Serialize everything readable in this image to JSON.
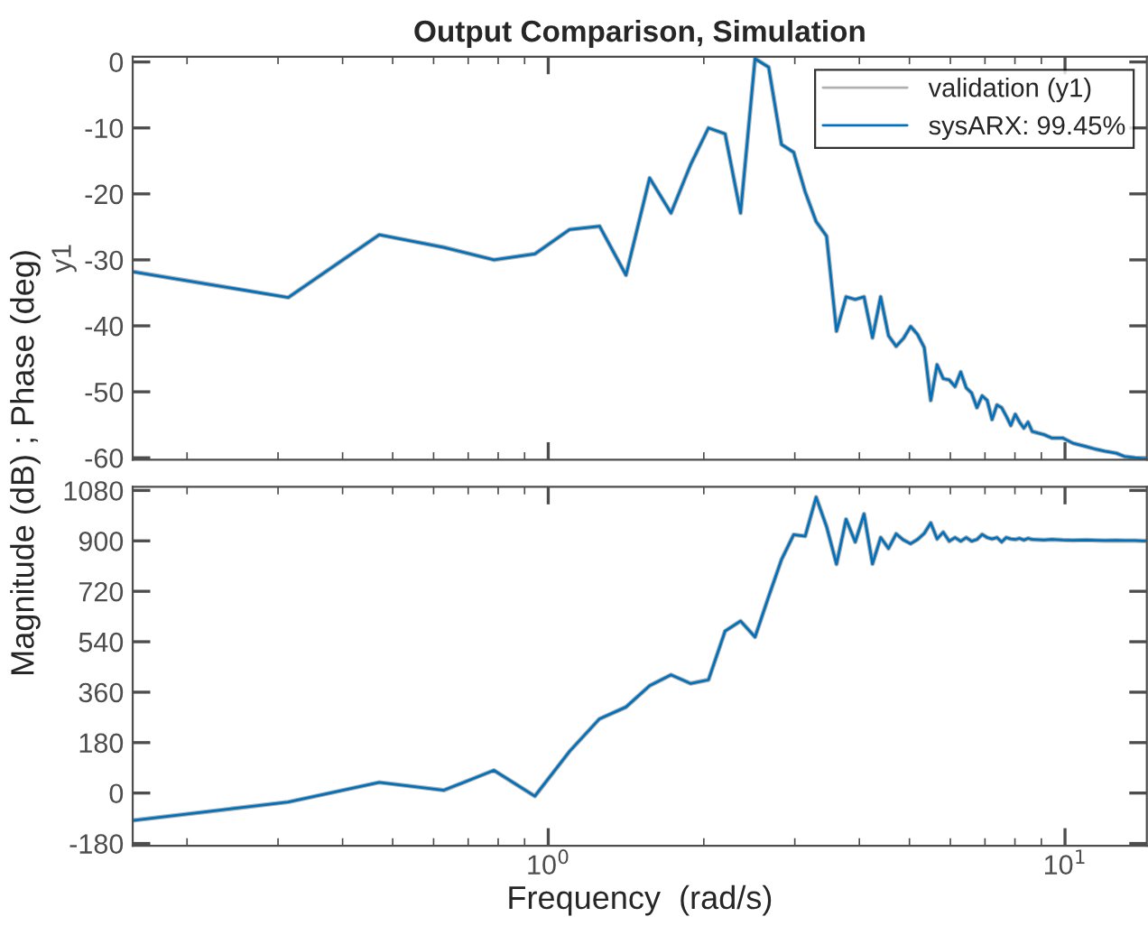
{
  "chart_data": [
    {
      "type": "line",
      "title": "Output Comparison, Simulation",
      "ylabel": "y1",
      "annotations": [
        "Magnitude (dB) ; Phase (deg)"
      ],
      "log": "x",
      "grid": false,
      "legend": "top right",
      "tick_labels": "y",
      "x": [
        0.157,
        0.314,
        0.471,
        0.628,
        0.785,
        0.942,
        1.1,
        1.257,
        1.414,
        1.571,
        1.728,
        1.885,
        2.042,
        2.199,
        2.356,
        2.513,
        2.67,
        2.827,
        2.985,
        3.142,
        3.299,
        3.456,
        3.613,
        3.77,
        3.927,
        4.084,
        4.241,
        4.398,
        4.555,
        4.712,
        4.869,
        5.027,
        5.184,
        5.341,
        5.498,
        5.655,
        5.812,
        5.969,
        6.126,
        6.283,
        6.44,
        6.597,
        6.754,
        6.912,
        7.069,
        7.226,
        7.383,
        7.54,
        7.697,
        7.854,
        8.011,
        8.168,
        8.325,
        8.482,
        8.639,
        9.111,
        9.425,
        9.896,
        10.367,
        10.996,
        11.467,
        11.938,
        12.566,
        13.038,
        13.666,
        14.137,
        14.294
      ],
      "xlim": [
        0.157,
        14.4
      ],
      "ylim": [
        -60.3,
        0.8
      ],
      "yticks": [
        0,
        -10,
        -20,
        -30,
        -40,
        -50,
        -60
      ],
      "series": [
        {
          "name": "validation (y1)",
          "color": "#b0b0b0",
          "values": [
            -31.8,
            -35.7,
            -26.2,
            -28.1,
            -30.0,
            -29.1,
            -25.4,
            -24.9,
            -32.3,
            -17.6,
            -22.9,
            -15.6,
            -10.0,
            -10.9,
            -22.9,
            0.5,
            -0.8,
            -12.5,
            -13.7,
            -19.7,
            -24.2,
            -26.4,
            -40.8,
            -35.6,
            -36.0,
            -35.6,
            -41.8,
            -35.6,
            -41.5,
            -43.1,
            -41.9,
            -40.1,
            -41.3,
            -43.3,
            -51.3,
            -45.9,
            -48.0,
            -48.2,
            -49.2,
            -47.0,
            -49.4,
            -50.2,
            -52.4,
            -50.6,
            -51.3,
            -54.2,
            -52.0,
            -52.4,
            -53.7,
            -55.1,
            -53.4,
            -54.6,
            -55.5,
            -54.6,
            -56.0,
            -56.5,
            -57.0,
            -57.0,
            -57.8,
            -58.3,
            -58.7,
            -59.0,
            -59.3,
            -59.8,
            -60.0,
            -60.1,
            -60.1
          ]
        },
        {
          "name": "sysARX: 99.45%",
          "color": "#0072bd",
          "values": [
            -31.8,
            -35.7,
            -26.2,
            -28.1,
            -30.0,
            -29.1,
            -25.4,
            -24.9,
            -32.3,
            -17.6,
            -22.9,
            -15.6,
            -10.0,
            -10.9,
            -22.9,
            0.5,
            -0.8,
            -12.5,
            -13.7,
            -19.7,
            -24.2,
            -26.4,
            -40.8,
            -35.6,
            -36.0,
            -35.6,
            -41.8,
            -35.6,
            -41.5,
            -43.1,
            -41.9,
            -40.1,
            -41.3,
            -43.3,
            -51.3,
            -45.9,
            -48.0,
            -48.2,
            -49.2,
            -47.0,
            -49.4,
            -50.2,
            -52.4,
            -50.6,
            -51.3,
            -54.2,
            -52.0,
            -52.4,
            -53.7,
            -55.1,
            -53.4,
            -54.6,
            -55.5,
            -54.6,
            -56.0,
            -56.5,
            -57.0,
            -57.0,
            -57.8,
            -58.3,
            -58.7,
            -59.0,
            -59.3,
            -59.8,
            -60.0,
            -60.1,
            -60.1
          ]
        }
      ]
    },
    {
      "type": "line",
      "xlabel": "Frequency  (rad/s)",
      "log": "x",
      "grid": false,
      "x": [
        0.157,
        0.314,
        0.471,
        0.628,
        0.785,
        0.942,
        1.1,
        1.257,
        1.414,
        1.571,
        1.728,
        1.885,
        2.042,
        2.199,
        2.356,
        2.513,
        2.67,
        2.827,
        2.985,
        3.142,
        3.299,
        3.456,
        3.613,
        3.77,
        3.927,
        4.084,
        4.241,
        4.398,
        4.555,
        4.712,
        4.869,
        5.027,
        5.184,
        5.341,
        5.498,
        5.655,
        5.812,
        5.969,
        6.126,
        6.283,
        6.44,
        6.597,
        6.754,
        6.912,
        7.069,
        7.226,
        7.383,
        7.54,
        7.697,
        7.854,
        8.011,
        8.168,
        8.325,
        8.482,
        8.639,
        9.111,
        9.425,
        9.896,
        10.367,
        10.996,
        11.467,
        11.938,
        12.566,
        13.038,
        13.666,
        14.137,
        14.294
      ],
      "xlim": [
        0.157,
        14.4
      ],
      "xticks": [
        {
          "value": 1,
          "label": "10$^{0}$"
        },
        {
          "value": 10,
          "label": "10$^{1}$"
        }
      ],
      "ylim": [
        -188,
        1093
      ],
      "yticks": [
        1080,
        900,
        720,
        540,
        360,
        180,
        0,
        -180
      ],
      "series": [
        {
          "color": "#b0b0b0",
          "values": [
            -98,
            -32,
            38,
            10,
            81,
            -11,
            149,
            265,
            307,
            383,
            422,
            391,
            404,
            578,
            614,
            557,
            701,
            833,
            922,
            917,
            1056,
            951,
            817,
            977,
            896,
            996,
            818,
            912,
            873,
            925,
            903,
            890,
            905,
            927,
            964,
            907,
            931,
            899,
            912,
            899,
            912,
            899,
            905,
            923,
            912,
            907,
            912,
            896,
            912,
            907,
            905,
            909,
            903,
            909,
            905,
            903,
            905,
            903,
            902,
            903,
            902,
            901,
            902,
            901,
            901,
            900,
            900
          ]
        },
        {
          "color": "#0072bd",
          "values": [
            -98,
            -32,
            38,
            10,
            81,
            -11,
            149,
            265,
            307,
            383,
            422,
            391,
            404,
            578,
            614,
            557,
            701,
            833,
            922,
            917,
            1056,
            951,
            817,
            977,
            896,
            996,
            818,
            912,
            873,
            925,
            903,
            890,
            905,
            927,
            964,
            907,
            931,
            899,
            912,
            899,
            912,
            899,
            905,
            923,
            912,
            907,
            912,
            896,
            912,
            907,
            905,
            909,
            903,
            909,
            905,
            903,
            905,
            903,
            902,
            903,
            902,
            901,
            902,
            901,
            901,
            900,
            900
          ]
        }
      ]
    }
  ]
}
